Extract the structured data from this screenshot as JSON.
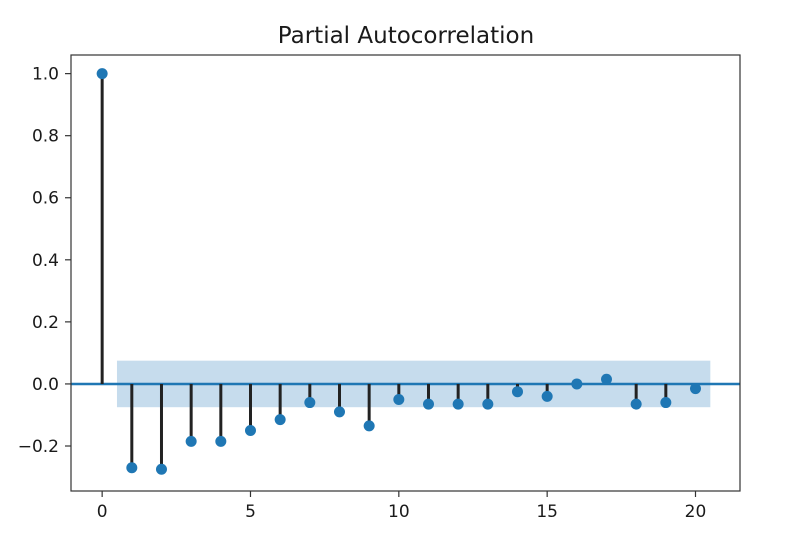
{
  "chart_data": {
    "type": "stem",
    "title": "Partial Autocorrelation",
    "xlabel": "",
    "ylabel": "",
    "xlim": [
      -1.05,
      21.5
    ],
    "ylim": [
      -0.345,
      1.06
    ],
    "x_ticks": [
      0,
      5,
      10,
      15,
      20
    ],
    "y_ticks": [
      1.0,
      0.8,
      0.6,
      0.4,
      0.2,
      0.0,
      -0.2
    ],
    "y_tick_labels": [
      "1.0",
      "0.8",
      "0.6",
      "0.4",
      "0.2",
      "0.0",
      "−0.2"
    ],
    "lags": [
      0,
      1,
      2,
      3,
      4,
      5,
      6,
      7,
      8,
      9,
      10,
      11,
      12,
      13,
      14,
      15,
      16,
      17,
      18,
      19,
      20
    ],
    "values": [
      1.0,
      -0.27,
      -0.275,
      -0.185,
      -0.185,
      -0.15,
      -0.115,
      -0.06,
      -0.09,
      -0.135,
      -0.05,
      -0.065,
      -0.065,
      -0.065,
      -0.025,
      -0.04,
      0.0,
      0.015,
      -0.065,
      -0.06,
      -0.015
    ],
    "confidence_band": {
      "lower": -0.075,
      "upper": 0.075,
      "x_start": 0.5,
      "x_end": 20.5
    },
    "grid": false,
    "colors": {
      "marker": "#1f77b4",
      "stem": "#222222",
      "zero_line": "#1f77b4",
      "band": "#aecde6",
      "axes": "#333333"
    }
  }
}
